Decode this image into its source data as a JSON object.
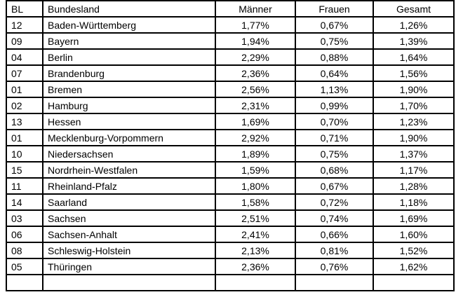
{
  "table": {
    "columns": [
      {
        "key": "bl",
        "label": "BL"
      },
      {
        "key": "bundesland",
        "label": "Bundesland"
      },
      {
        "key": "maenner",
        "label": "Männer"
      },
      {
        "key": "frauen",
        "label": "Frauen"
      },
      {
        "key": "gesamt",
        "label": "Gesamt"
      }
    ],
    "rows": [
      {
        "bl": "12",
        "bundesland": "Baden-Württemberg",
        "maenner": "1,77%",
        "frauen": "0,67%",
        "gesamt": "1,26%"
      },
      {
        "bl": "09",
        "bundesland": "Bayern",
        "maenner": "1,94%",
        "frauen": "0,75%",
        "gesamt": "1,39%"
      },
      {
        "bl": "04",
        "bundesland": "Berlin",
        "maenner": "2,29%",
        "frauen": "0,88%",
        "gesamt": "1,64%"
      },
      {
        "bl": "07",
        "bundesland": "Brandenburg",
        "maenner": "2,36%",
        "frauen": "0,64%",
        "gesamt": "1,56%"
      },
      {
        "bl": "01",
        "bundesland": "Bremen",
        "maenner": "2,56%",
        "frauen": "1,13%",
        "gesamt": "1,90%"
      },
      {
        "bl": "02",
        "bundesland": "Hamburg",
        "maenner": "2,31%",
        "frauen": "0,99%",
        "gesamt": "1,70%"
      },
      {
        "bl": "13",
        "bundesland": "Hessen",
        "maenner": "1,69%",
        "frauen": "0,70%",
        "gesamt": "1,23%"
      },
      {
        "bl": "01",
        "bundesland": "Mecklenburg-Vorpommern",
        "maenner": "2,92%",
        "frauen": "0,71%",
        "gesamt": "1,90%"
      },
      {
        "bl": "10",
        "bundesland": "Niedersachsen",
        "maenner": "1,89%",
        "frauen": "0,75%",
        "gesamt": "1,37%"
      },
      {
        "bl": "15",
        "bundesland": "Nordrhein-Westfalen",
        "maenner": "1,59%",
        "frauen": "0,68%",
        "gesamt": "1,17%"
      },
      {
        "bl": "11",
        "bundesland": "Rheinland-Pfalz",
        "maenner": "1,80%",
        "frauen": "0,67%",
        "gesamt": "1,28%"
      },
      {
        "bl": "14",
        "bundesland": "Saarland",
        "maenner": "1,58%",
        "frauen": "0,72%",
        "gesamt": "1,18%"
      },
      {
        "bl": "03",
        "bundesland": "Sachsen",
        "maenner": "2,51%",
        "frauen": "0,74%",
        "gesamt": "1,69%"
      },
      {
        "bl": "06",
        "bundesland": "Sachsen-Anhalt",
        "maenner": "2,41%",
        "frauen": "0,66%",
        "gesamt": "1,60%"
      },
      {
        "bl": "08",
        "bundesland": "Schleswig-Holstein",
        "maenner": "2,13%",
        "frauen": "0,81%",
        "gesamt": "1,52%"
      },
      {
        "bl": "05",
        "bundesland": "Thüringen",
        "maenner": "2,36%",
        "frauen": "0,76%",
        "gesamt": "1,62%"
      }
    ]
  },
  "colors": {
    "border": "#000000",
    "text": "#000000",
    "background": "#ffffff"
  }
}
